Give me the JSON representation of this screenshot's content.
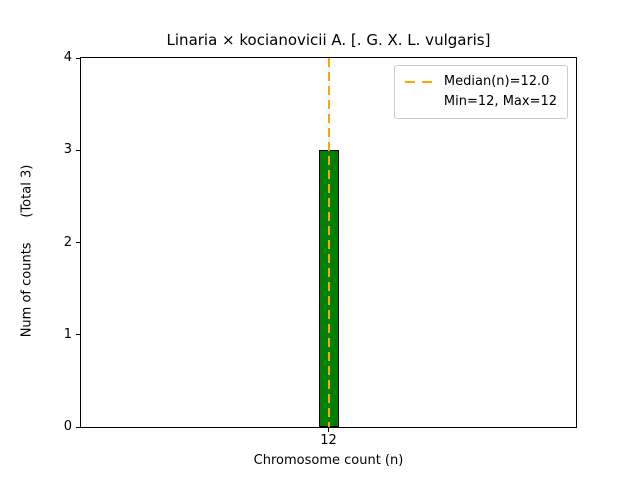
{
  "chart_data": {
    "type": "bar",
    "title": "Linaria × kocianovicii A. [. G. X. L. vulgaris]",
    "categories": [
      "12"
    ],
    "values": [
      3
    ],
    "xlabel": "Chromosome count (n)",
    "ylabel": "Num of counts      (Total 3)",
    "ylim": [
      0,
      4
    ],
    "yticks": [
      0,
      1,
      2,
      3,
      4
    ],
    "grid": false,
    "bar_color": "#008000",
    "bar_edge_color": "#000000",
    "median_line": {
      "x": "12",
      "value": 12.0,
      "color": "#FFA500",
      "style": "dashed"
    },
    "legend": {
      "position": "upper right",
      "entries": [
        {
          "label": "Median(n)=12.0",
          "marker": "dashed-line",
          "color": "#FFA500"
        },
        {
          "label": "Min=12, Max=12",
          "marker": "none"
        }
      ]
    }
  }
}
